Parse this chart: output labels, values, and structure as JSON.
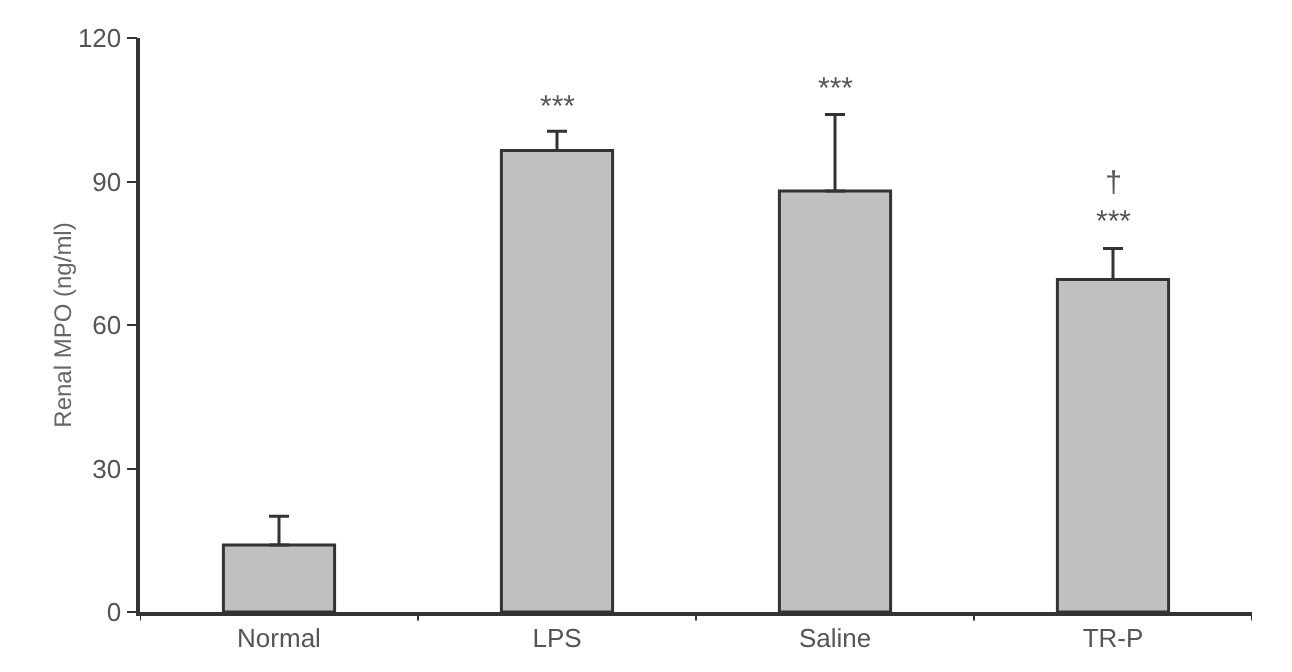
{
  "chart_data": {
    "type": "bar",
    "ylabel": "Renal MPO (ng/ml)",
    "categories": [
      "Normal",
      "LPS",
      "Saline",
      "TR-P"
    ],
    "values": [
      14,
      96.5,
      88,
      69.5
    ],
    "errors": [
      6,
      4,
      16,
      6.5
    ],
    "color": "#c0c0c0",
    "ylim": [
      0,
      120
    ],
    "yticks": [
      0,
      30,
      60,
      90,
      120
    ],
    "grid": false,
    "value_labels": [
      null,
      "***",
      "***",
      "†\n***"
    ]
  }
}
